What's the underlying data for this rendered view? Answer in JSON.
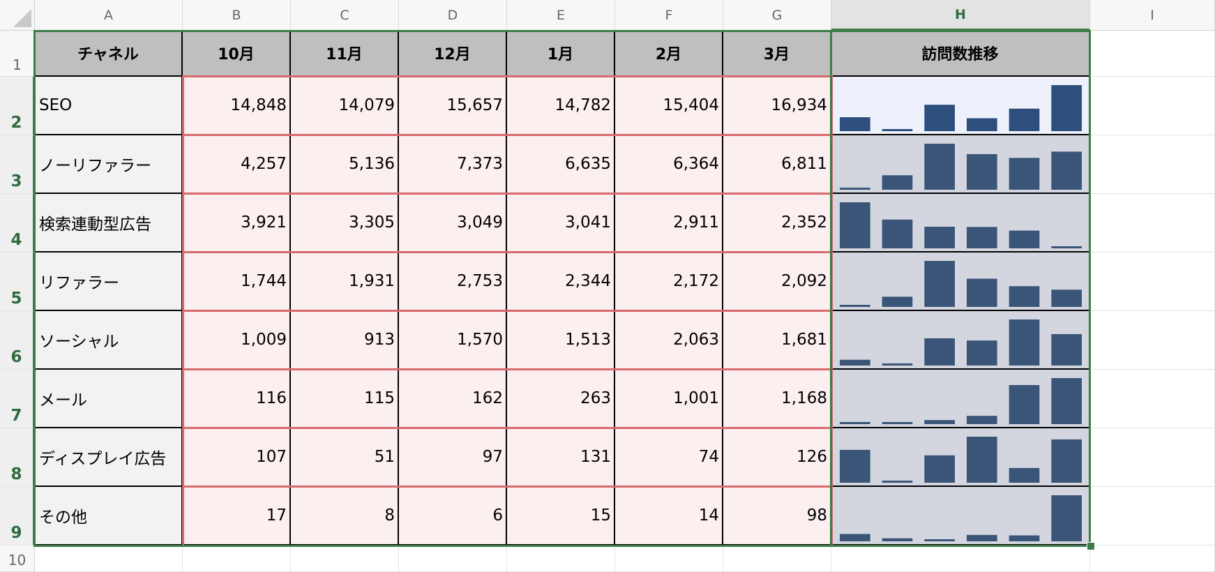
{
  "columns": [
    "A",
    "B",
    "C",
    "D",
    "E",
    "F",
    "G",
    "H",
    "I"
  ],
  "rows": [
    "1",
    "2",
    "3",
    "4",
    "5",
    "6",
    "7",
    "8",
    "9",
    "10"
  ],
  "selected_column": "H",
  "header": {
    "channel": "チャネル",
    "months": [
      "10月",
      "11月",
      "12月",
      "1月",
      "2月",
      "3月"
    ],
    "trend": "訪問数推移"
  },
  "data_rows": [
    {
      "channel": "SEO",
      "raw": [
        14848,
        14079,
        15657,
        14782,
        15404,
        16934
      ],
      "values": [
        "14,848",
        "14,079",
        "15,657",
        "14,782",
        "15,404",
        "16,934"
      ]
    },
    {
      "channel": "ノーリファラー",
      "raw": [
        4257,
        5136,
        7373,
        6635,
        6364,
        6811
      ],
      "values": [
        "4,257",
        "5,136",
        "7,373",
        "6,635",
        "6,364",
        "6,811"
      ]
    },
    {
      "channel": "検索連動型広告",
      "raw": [
        3921,
        3305,
        3049,
        3041,
        2911,
        2352
      ],
      "values": [
        "3,921",
        "3,305",
        "3,049",
        "3,041",
        "2,911",
        "2,352"
      ]
    },
    {
      "channel": "リファラー",
      "raw": [
        1744,
        1931,
        2753,
        2344,
        2172,
        2092
      ],
      "values": [
        "1,744",
        "1,931",
        "2,753",
        "2,344",
        "2,172",
        "2,092"
      ]
    },
    {
      "channel": "ソーシャル",
      "raw": [
        1009,
        913,
        1570,
        1513,
        2063,
        1681
      ],
      "values": [
        "1,009",
        "913",
        "1,570",
        "1,513",
        "2,063",
        "1,681"
      ]
    },
    {
      "channel": "メール",
      "raw": [
        116,
        115,
        162,
        263,
        1001,
        1168
      ],
      "values": [
        "116",
        "115",
        "162",
        "263",
        "1,001",
        "1,168"
      ]
    },
    {
      "channel": "ディスプレイ広告",
      "raw": [
        107,
        51,
        97,
        131,
        74,
        126
      ],
      "values": [
        "107",
        "51",
        "97",
        "131",
        "74",
        "126"
      ]
    },
    {
      "channel": "その他",
      "raw": [
        17,
        8,
        6,
        15,
        14,
        98
      ],
      "values": [
        "17",
        "8",
        "6",
        "15",
        "14",
        "98"
      ]
    }
  ],
  "colors": {
    "sparkline_bar": "#3a5578",
    "sparkline_bar_first": "#2c4f7e",
    "selection": "#3d7b4a",
    "value_range_border": "#d9696e"
  }
}
